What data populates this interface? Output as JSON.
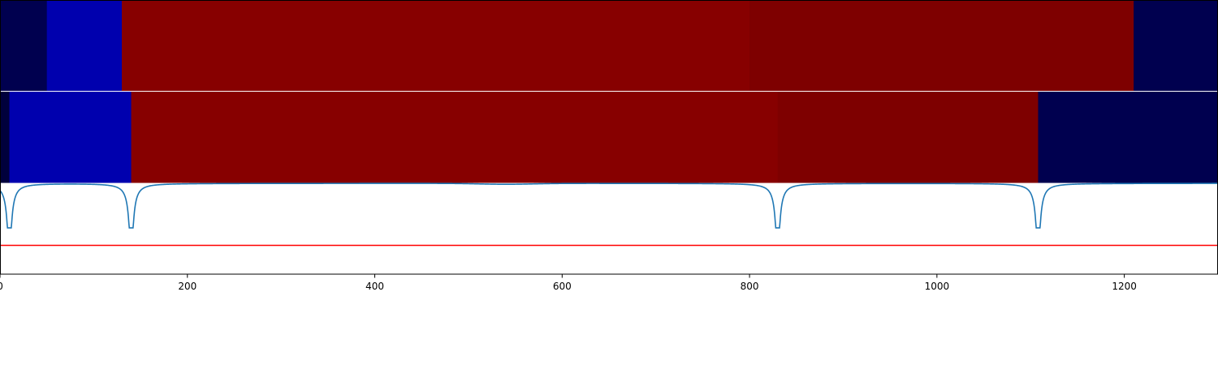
{
  "chart_data": [
    {
      "type": "heatmap",
      "panel": "top-strip",
      "xlim": [
        0,
        1300
      ],
      "segments": [
        {
          "start": 0,
          "end": 50,
          "color": "#00004f"
        },
        {
          "start": 50,
          "end": 130,
          "color": "#0000ae"
        },
        {
          "start": 130,
          "end": 800,
          "color": "#870000"
        },
        {
          "start": 800,
          "end": 1210,
          "color": "#7e0000"
        },
        {
          "start": 1210,
          "end": 1300,
          "color": "#00004f"
        }
      ]
    },
    {
      "type": "heatmap",
      "panel": "middle-strip",
      "xlim": [
        0,
        1300
      ],
      "segments": [
        {
          "start": 0,
          "end": 10,
          "color": "#00003c"
        },
        {
          "start": 10,
          "end": 140,
          "color": "#0000ae"
        },
        {
          "start": 140,
          "end": 830,
          "color": "#870000"
        },
        {
          "start": 830,
          "end": 1108,
          "color": "#7e0000"
        },
        {
          "start": 1108,
          "end": 1300,
          "color": "#00004f"
        }
      ]
    },
    {
      "type": "line",
      "panel": "bottom-signal",
      "xlim": [
        0,
        1300
      ],
      "ylim": [
        -1.0,
        0.02
      ],
      "baseline": 0,
      "dips": [
        {
          "x": 10,
          "depth": -0.98
        },
        {
          "x": 140,
          "depth": -0.98
        },
        {
          "x": 830,
          "depth": -0.98
        },
        {
          "x": 1108,
          "depth": -0.98
        }
      ],
      "shallow_dip": {
        "x": 540,
        "depth": -0.01
      },
      "threshold": -1.38,
      "series": [
        {
          "color": "#1f77b4"
        },
        {
          "color": "#ff0000"
        }
      ],
      "x_ticks": [
        "0",
        "200",
        "400",
        "600",
        "800",
        "1000",
        "1200"
      ],
      "x_tick_values": [
        0,
        200,
        400,
        600,
        800,
        1000,
        1200
      ]
    }
  ]
}
